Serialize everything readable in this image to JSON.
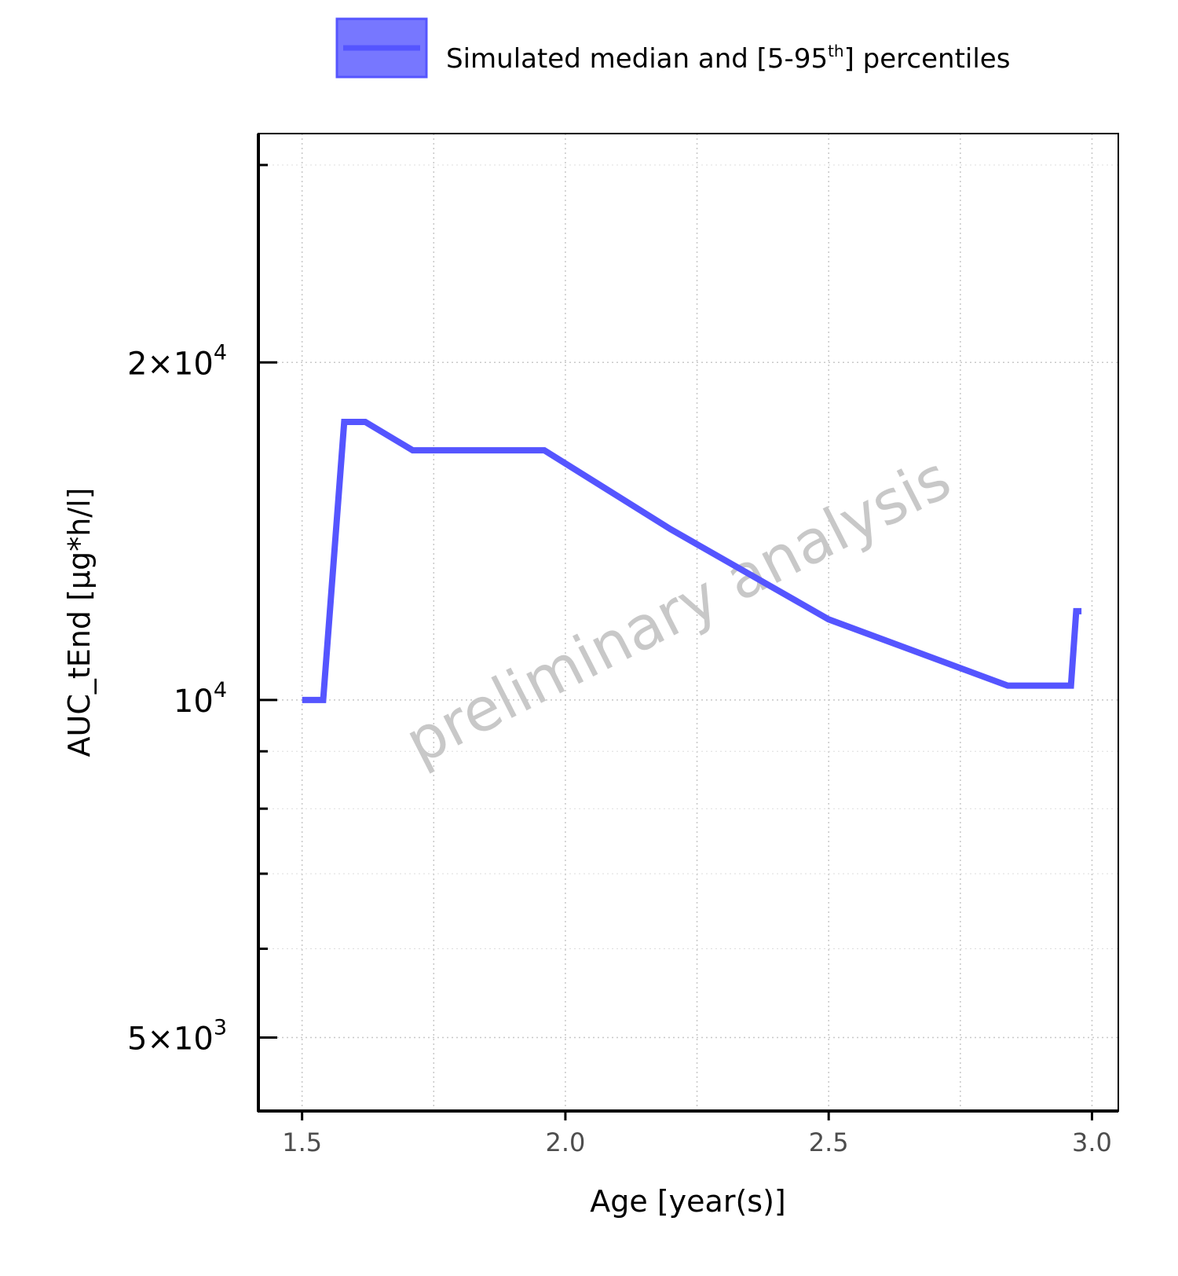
{
  "chart_data": {
    "type": "line",
    "legend": {
      "label": "Simulated median and [5-95",
      "label_sup": "th",
      "label_end": "] percentiles",
      "placement": "top"
    },
    "xlabel": "Age [year(s)]",
    "ylabel": "AUC_tEnd [µg*h/l]",
    "xlim": [
      1.417,
      3.05
    ],
    "ylim": [
      4300,
      32000
    ],
    "yscale": "log",
    "grid": true,
    "x_ticks": [
      {
        "value": 1.5,
        "label": "1.5"
      },
      {
        "value": 2.0,
        "label": "2.0"
      },
      {
        "value": 2.5,
        "label": "2.5"
      },
      {
        "value": 3.0,
        "label": "3.0"
      }
    ],
    "y_ticks": [
      {
        "value": 5000,
        "mantissa": "5",
        "exp": "3"
      },
      {
        "value": 10000,
        "mantissa": "",
        "exp": "4"
      },
      {
        "value": 20000,
        "mantissa": "2",
        "exp": "4"
      }
    ],
    "y_minor_ticks": [
      6000,
      7000,
      8000,
      9000,
      30000
    ],
    "x_minor_gridlines": [
      1.75,
      2.25,
      2.75
    ],
    "watermark": "preliminary analysis",
    "series": [
      {
        "name": "Simulated median and [5-95th] percentiles",
        "color": "#5555ff",
        "x": [
          1.5,
          1.54,
          1.58,
          1.62,
          1.71,
          1.96,
          2.2,
          2.5,
          2.84,
          2.96,
          2.97,
          2.98
        ],
        "y": [
          10000,
          10000,
          17700,
          17700,
          16700,
          16700,
          14200,
          11800,
          10300,
          10300,
          12000,
          12000
        ]
      }
    ]
  }
}
